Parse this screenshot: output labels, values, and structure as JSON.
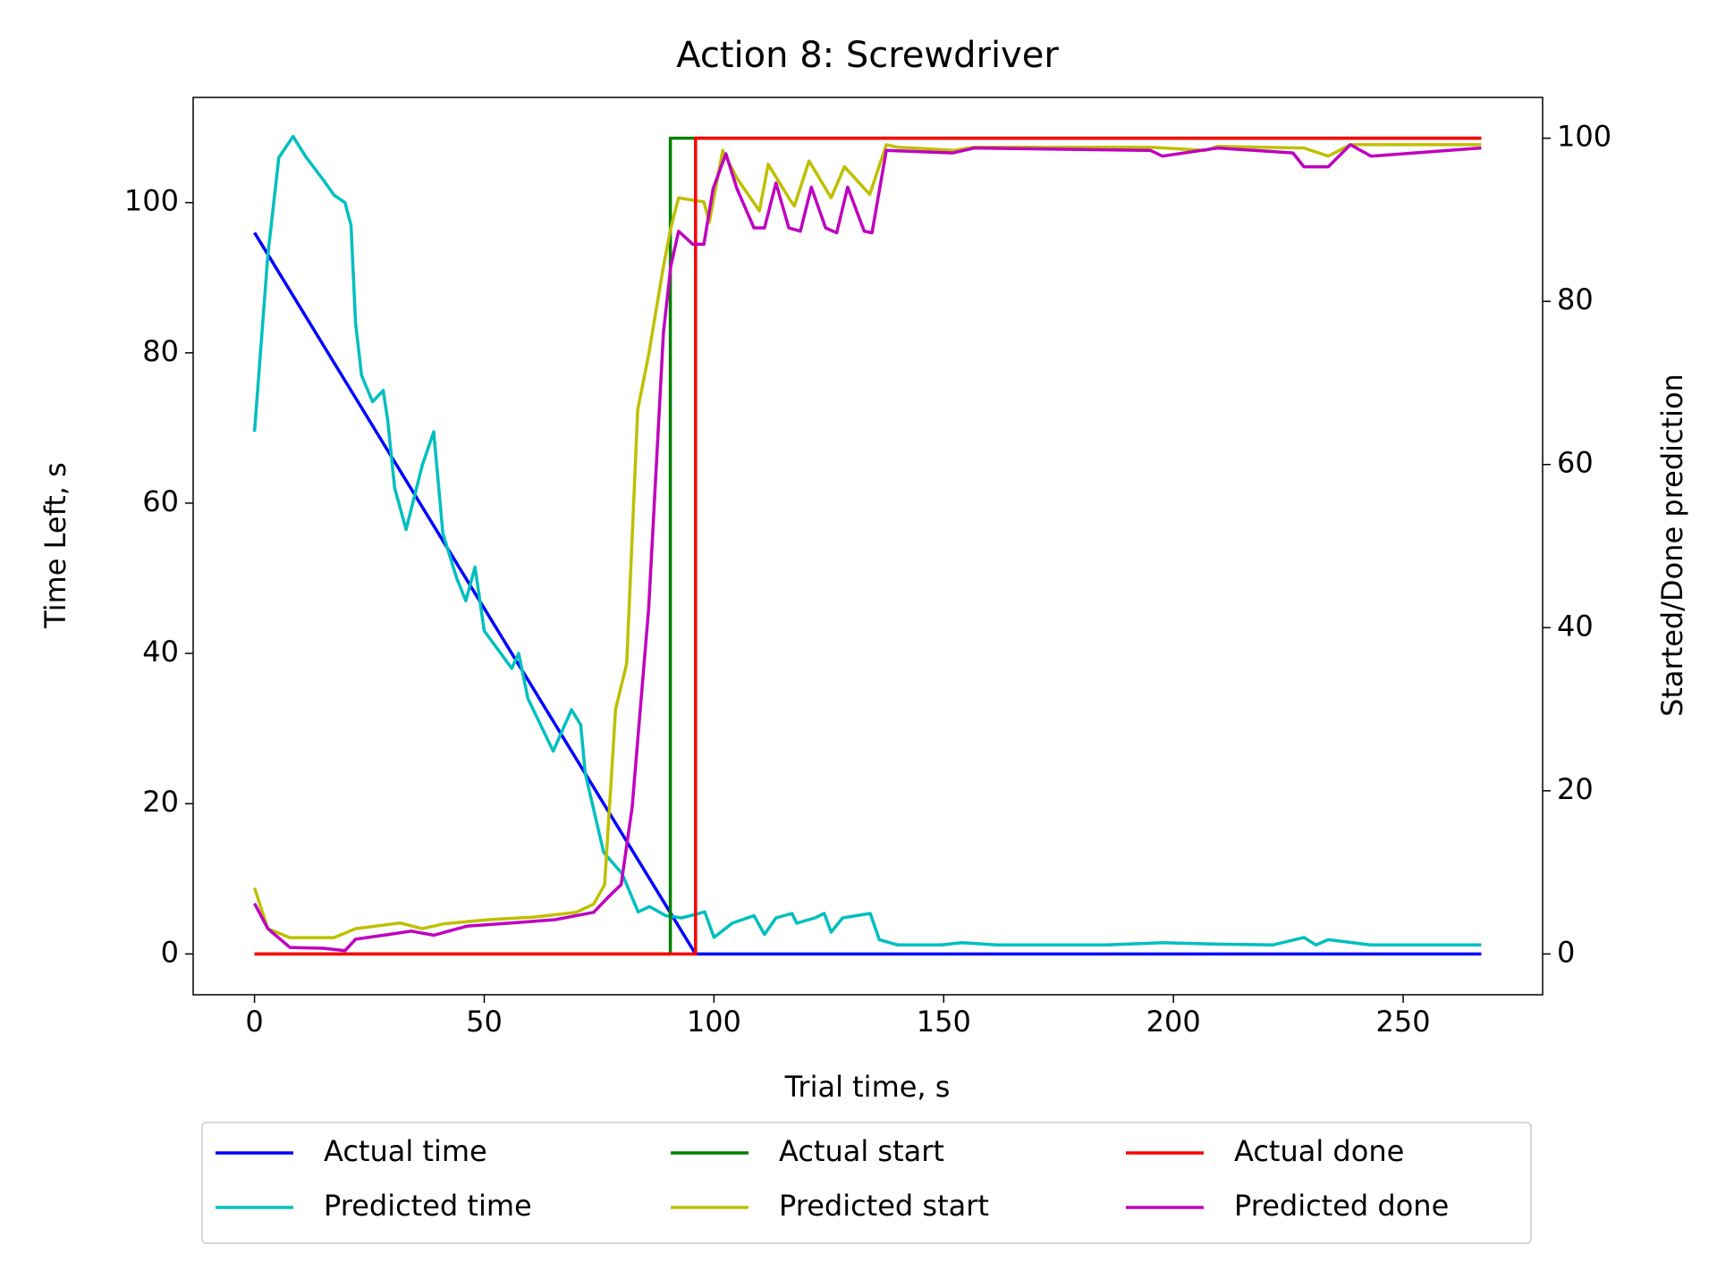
{
  "chart_data": {
    "type": "line",
    "title": "Action 8: Screwdriver",
    "xlabel": "Trial time, s",
    "ylabel": "Time Left, s",
    "y2label": "Started/Done prediction",
    "xlim": [
      -13.35,
      280.35
    ],
    "ylim": [
      -5.43,
      114.0
    ],
    "y2lim": [
      -5,
      105
    ],
    "xticks": [
      0,
      50,
      100,
      150,
      200,
      250
    ],
    "yticks": [
      0,
      20,
      40,
      60,
      80,
      100
    ],
    "y2ticks": [
      0,
      20,
      40,
      60,
      80,
      100
    ],
    "legend": "lower center",
    "legend_columns": 3,
    "series": [
      {
        "name": "Actual time",
        "color": "#0000ff",
        "x": [
          0,
          96,
          267
        ],
        "values": [
          96,
          0,
          0
        ]
      },
      {
        "name": "Predicted time",
        "color": "#00bfbf",
        "x": [
          0,
          2.9,
          5.3,
          8.4,
          11.3,
          15,
          17.3,
          19.7,
          21,
          22,
          23.3,
          25.7,
          28,
          29,
          30.5,
          33,
          36.5,
          39,
          41,
          44,
          46,
          48,
          50,
          56,
          57.5,
          59.5,
          65,
          69,
          71,
          72,
          76,
          80,
          83.5,
          86,
          89.5,
          93,
          98,
          100,
          104,
          108.7,
          111,
          113.5,
          117,
          118,
          122,
          124,
          125.5,
          128,
          134,
          136,
          140,
          149.5,
          154,
          161.5,
          185.6,
          197.6,
          209.6,
          221.6,
          228.4,
          231,
          233.7,
          243,
          267
        ],
        "values": [
          69.5,
          93,
          106,
          108.8,
          106,
          103,
          101,
          100,
          97,
          84,
          77,
          73.5,
          75,
          71,
          62,
          56.5,
          65,
          69.5,
          56,
          50,
          47,
          51.5,
          43,
          38,
          40,
          34,
          27,
          32.5,
          30.5,
          24,
          13.5,
          10.7,
          5.6,
          6.3,
          5.1,
          4.8,
          5.6,
          2.2,
          4.1,
          5.1,
          2.6,
          4.8,
          5.4,
          4.1,
          4.8,
          5.4,
          2.9,
          4.8,
          5.4,
          1.9,
          1.2,
          1.2,
          1.5,
          1.2,
          1.2,
          1.5,
          1.3,
          1.2,
          2.2,
          1.2,
          1.9,
          1.2,
          1.2
        ]
      },
      {
        "name": "Actual start",
        "color": "#008000",
        "axis": "y2",
        "x": [
          0,
          90.5,
          90.5,
          267
        ],
        "values": [
          0,
          0,
          100,
          100
        ]
      },
      {
        "name": "Predicted start",
        "color": "#bfbf00",
        "axis": "y2",
        "x": [
          0,
          2.9,
          7.7,
          17.3,
          22,
          31.7,
          36.5,
          41.3,
          51,
          60.6,
          70,
          73.8,
          76.2,
          78.6,
          81,
          83.4,
          85.8,
          89,
          90.6,
          92.3,
          95.4,
          97.8,
          99,
          101.9,
          105,
          109.9,
          111.8,
          116.6,
          117.5,
          120.7,
          125.5,
          128.4,
          133.9,
          137.5,
          140,
          152,
          156.7,
          195,
          207,
          209.6,
          228.4,
          233.7,
          238.5,
          267
        ],
        "values": [
          8.1,
          3.1,
          2,
          2,
          3.1,
          3.8,
          3.1,
          3.7,
          4.2,
          4.5,
          5.1,
          6.1,
          8.5,
          30,
          35.6,
          66.7,
          73.5,
          84.3,
          89,
          92.7,
          92.4,
          92.2,
          89.7,
          98.5,
          95.1,
          91.1,
          96.8,
          92.4,
          91.7,
          97.2,
          92.7,
          96.5,
          93.1,
          99.2,
          98.9,
          98.5,
          98.9,
          98.9,
          98.5,
          99,
          98.8,
          97.8,
          99.2,
          99.2
        ]
      },
      {
        "name": "Actual done",
        "color": "#ff0000",
        "axis": "y2",
        "x": [
          0,
          96,
          96,
          267
        ],
        "values": [
          0,
          0,
          100,
          100
        ]
      },
      {
        "name": "Predicted done",
        "color": "#bf00bf",
        "axis": "y2",
        "x": [
          0,
          2.9,
          7.7,
          15,
          19.7,
          22,
          29.3,
          34.1,
          39,
          46.2,
          55.8,
          65.4,
          73.8,
          77.4,
          79.8,
          82.2,
          85.8,
          89,
          90.6,
          92.3,
          95.4,
          97.8,
          99.8,
          102.6,
          105,
          108.7,
          111,
          113.5,
          116.3,
          118.8,
          121.2,
          124.3,
          126.7,
          129.1,
          132.7,
          134.4,
          137.5,
          152,
          156.7,
          195,
          197.6,
          209.6,
          226,
          228.4,
          233.7,
          238.5,
          243,
          267
        ],
        "values": [
          6.2,
          3.1,
          0.8,
          0.7,
          0.4,
          1.8,
          2.4,
          2.8,
          2.3,
          3.4,
          3.8,
          4.2,
          5.1,
          7.2,
          8.5,
          18,
          42.4,
          76.2,
          84.3,
          88.6,
          87,
          87,
          93.8,
          98.1,
          93.8,
          89,
          89,
          94.5,
          89,
          88.6,
          94,
          89,
          88.4,
          94,
          88.6,
          88.4,
          98.5,
          98.2,
          98.8,
          98.5,
          97.8,
          98.8,
          98.2,
          96.5,
          96.5,
          99.2,
          97.8,
          98.8
        ]
      }
    ]
  }
}
